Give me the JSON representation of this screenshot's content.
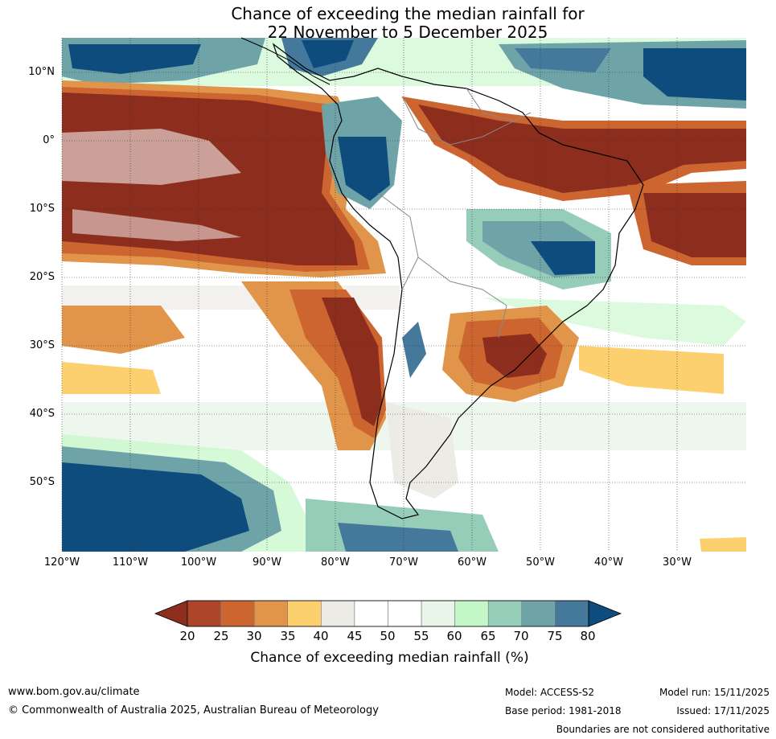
{
  "title": {
    "line1": "Chance of exceeding the median rainfall for",
    "line2": "22 November to 5 December 2025"
  },
  "map": {
    "region": "South America",
    "lat_labels": [
      "10°N",
      "0°",
      "10°S",
      "20°S",
      "30°S",
      "40°S",
      "50°S"
    ],
    "lon_labels": [
      "120°W",
      "110°W",
      "100°W",
      "90°W",
      "80°W",
      "70°W",
      "60°W",
      "50°W",
      "40°W",
      "30°W"
    ]
  },
  "colorbar": {
    "ticks": [
      "20",
      "25",
      "30",
      "35",
      "40",
      "45",
      "50",
      "55",
      "60",
      "65",
      "70",
      "75",
      "80"
    ],
    "colors": [
      "#8c2d1e",
      "#ad4628",
      "#cc6530",
      "#e0954a",
      "#fdd06f",
      "#edebe6",
      "#ffffff",
      "#ffffff",
      "#e8f5e8",
      "#c4f7c8",
      "#95cdb9",
      "#6ea3a8",
      "#45799b",
      "#0f4c7e"
    ],
    "label": "Chance of exceeding median rainfall (%)"
  },
  "footer": {
    "website": "www.bom.gov.au/climate",
    "copyright": "© Commonwealth of Australia 2025, Australian Bureau of Meteorology",
    "model": "Model: ACCESS-S2",
    "base_period": "Base period: 1981-2018",
    "model_run": "Model run: 15/11/2025",
    "issued": "Issued: 17/11/2025",
    "disclaimer": "Boundaries are not considered authoritative"
  }
}
